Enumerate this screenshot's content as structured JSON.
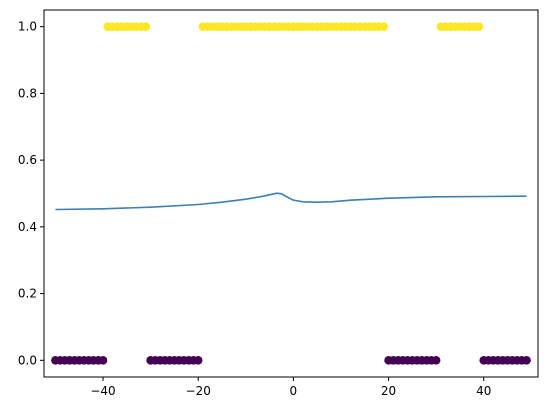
{
  "chart_data": {
    "type": "scatter",
    "title": "",
    "xlabel": "",
    "ylabel": "",
    "xlim": [
      -52.4,
      51.4
    ],
    "ylim": [
      -0.05,
      1.05
    ],
    "grid": false,
    "legend": "none",
    "x_ticks": [
      {
        "value": -40,
        "label": "−40"
      },
      {
        "value": -20,
        "label": "−20"
      },
      {
        "value": 0,
        "label": "0"
      },
      {
        "value": 20,
        "label": "20"
      },
      {
        "value": 40,
        "label": "40"
      }
    ],
    "y_ticks": [
      {
        "value": 0.0,
        "label": "0.0"
      },
      {
        "value": 0.2,
        "label": "0.2"
      },
      {
        "value": 0.4,
        "label": "0.4"
      },
      {
        "value": 0.6,
        "label": "0.6"
      },
      {
        "value": 0.8,
        "label": "0.8"
      },
      {
        "value": 1.0,
        "label": "1.0"
      }
    ],
    "scatter": {
      "colors": {
        "0": "#440154",
        "1": "#fde725"
      },
      "segments": [
        {
          "x_start": -50,
          "x_end": -40,
          "y": 0
        },
        {
          "x_start": -39,
          "x_end": -31,
          "y": 1
        },
        {
          "x_start": -30,
          "x_end": -20,
          "y": 0
        },
        {
          "x_start": -19,
          "x_end": 19,
          "y": 1
        },
        {
          "x_start": 20,
          "x_end": 30,
          "y": 0
        },
        {
          "x_start": 31,
          "x_end": 39,
          "y": 1
        },
        {
          "x_start": 40,
          "x_end": 49,
          "y": 0
        }
      ]
    },
    "line": {
      "color": "#3b7fb5",
      "points": [
        [
          -50,
          0.452
        ],
        [
          -40,
          0.454
        ],
        [
          -30,
          0.459
        ],
        [
          -20,
          0.467
        ],
        [
          -15,
          0.474
        ],
        [
          -10,
          0.483
        ],
        [
          -7,
          0.49
        ],
        [
          -5,
          0.496
        ],
        [
          -3.5,
          0.501
        ],
        [
          -2.5,
          0.499
        ],
        [
          -1.5,
          0.491
        ],
        [
          0,
          0.48
        ],
        [
          2,
          0.475
        ],
        [
          5,
          0.474
        ],
        [
          8,
          0.475
        ],
        [
          12,
          0.48
        ],
        [
          20,
          0.486
        ],
        [
          30,
          0.49
        ],
        [
          40,
          0.491
        ],
        [
          49,
          0.492
        ]
      ]
    }
  }
}
